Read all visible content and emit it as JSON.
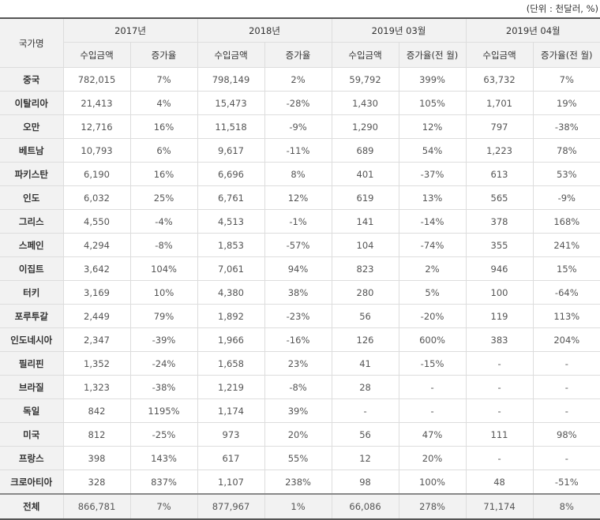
{
  "unit_note": "(단위 : 천달러, %)",
  "header": {
    "country": "국가명",
    "years": [
      "2017년",
      "2018년",
      "2019년 03월",
      "2019년 04월"
    ],
    "sub": [
      "수입금액",
      "증가율",
      "수입금액",
      "증가율",
      "수입금액",
      "증가율(전 월)",
      "수입금액",
      "증가율(전 월)"
    ]
  },
  "rows": [
    {
      "country": "중국",
      "values": [
        "782,015",
        "7%",
        "798,149",
        "2%",
        "59,792",
        "399%",
        "63,732",
        "7%"
      ]
    },
    {
      "country": "이탈리아",
      "values": [
        "21,413",
        "4%",
        "15,473",
        "-28%",
        "1,430",
        "105%",
        "1,701",
        "19%"
      ]
    },
    {
      "country": "오만",
      "values": [
        "12,716",
        "16%",
        "11,518",
        "-9%",
        "1,290",
        "12%",
        "797",
        "-38%"
      ]
    },
    {
      "country": "베트남",
      "values": [
        "10,793",
        "6%",
        "9,617",
        "-11%",
        "689",
        "54%",
        "1,223",
        "78%"
      ]
    },
    {
      "country": "파키스탄",
      "values": [
        "6,190",
        "16%",
        "6,696",
        "8%",
        "401",
        "-37%",
        "613",
        "53%"
      ]
    },
    {
      "country": "인도",
      "values": [
        "6,032",
        "25%",
        "6,761",
        "12%",
        "619",
        "13%",
        "565",
        "-9%"
      ]
    },
    {
      "country": "그리스",
      "values": [
        "4,550",
        "-4%",
        "4,513",
        "-1%",
        "141",
        "-14%",
        "378",
        "168%"
      ]
    },
    {
      "country": "스페인",
      "values": [
        "4,294",
        "-8%",
        "1,853",
        "-57%",
        "104",
        "-74%",
        "355",
        "241%"
      ]
    },
    {
      "country": "이집트",
      "values": [
        "3,642",
        "104%",
        "7,061",
        "94%",
        "823",
        "2%",
        "946",
        "15%"
      ]
    },
    {
      "country": "터키",
      "values": [
        "3,169",
        "10%",
        "4,380",
        "38%",
        "280",
        "5%",
        "100",
        "-64%"
      ]
    },
    {
      "country": "포루투갈",
      "values": [
        "2,449",
        "79%",
        "1,892",
        "-23%",
        "56",
        "-20%",
        "119",
        "113%"
      ]
    },
    {
      "country": "인도네시아",
      "values": [
        "2,347",
        "-39%",
        "1,966",
        "-16%",
        "126",
        "600%",
        "383",
        "204%"
      ]
    },
    {
      "country": "필리핀",
      "values": [
        "1,352",
        "-24%",
        "1,658",
        "23%",
        "41",
        "-15%",
        "-",
        "-"
      ]
    },
    {
      "country": "브라질",
      "values": [
        "1,323",
        "-38%",
        "1,219",
        "-8%",
        "28",
        "-",
        "-",
        "-"
      ]
    },
    {
      "country": "독일",
      "values": [
        "842",
        "1195%",
        "1,174",
        "39%",
        "-",
        "-",
        "-",
        "-"
      ]
    },
    {
      "country": "미국",
      "values": [
        "812",
        "-25%",
        "973",
        "20%",
        "56",
        "47%",
        "111",
        "98%"
      ]
    },
    {
      "country": "프랑스",
      "values": [
        "398",
        "143%",
        "617",
        "55%",
        "12",
        "20%",
        "-",
        "-"
      ]
    },
    {
      "country": "크로아티아",
      "values": [
        "328",
        "837%",
        "1,107",
        "238%",
        "98",
        "100%",
        "48",
        "-51%"
      ]
    }
  ],
  "total": {
    "country": "전체",
    "values": [
      "866,781",
      "7%",
      "877,967",
      "1%",
      "66,086",
      "278%",
      "71,174",
      "8%"
    ]
  }
}
